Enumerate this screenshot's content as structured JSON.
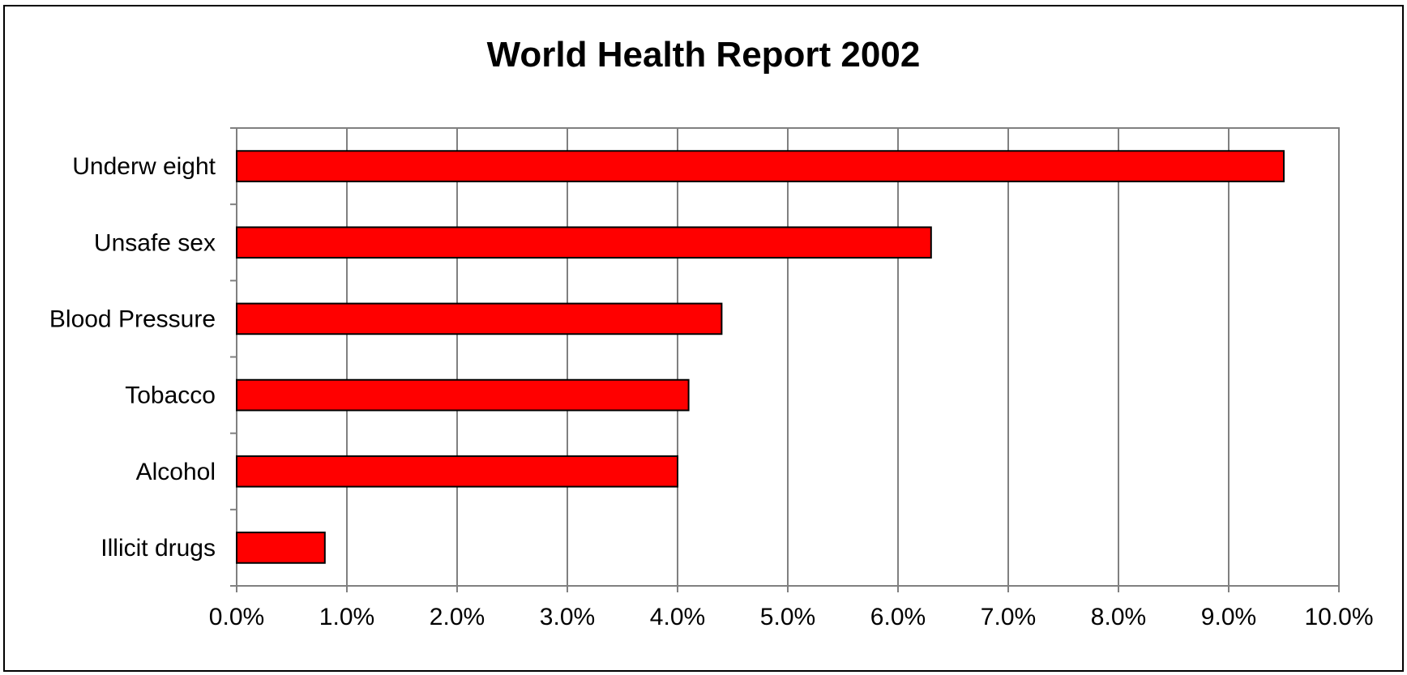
{
  "chart_data": {
    "type": "bar",
    "orientation": "horizontal",
    "title": "World Health Report 2002",
    "xlabel": "",
    "ylabel": "",
    "categories": [
      "Underw eight",
      "Unsafe sex",
      "Blood Pressure",
      "Tobacco",
      "Alcohol",
      "Illicit drugs"
    ],
    "values": [
      0.095,
      0.063,
      0.044,
      0.041,
      0.04,
      0.008
    ],
    "xlim": [
      0,
      0.1
    ],
    "xticks": [
      0.0,
      0.01,
      0.02,
      0.03,
      0.04,
      0.05,
      0.06,
      0.07,
      0.08,
      0.09,
      0.1
    ],
    "xtick_labels": [
      "0.0%",
      "1.0%",
      "2.0%",
      "3.0%",
      "4.0%",
      "5.0%",
      "6.0%",
      "7.0%",
      "8.0%",
      "9.0%",
      "10.0%"
    ],
    "grid": "vertical",
    "legend": "none",
    "colors": {
      "bar_fill": "#ff0000",
      "bar_stroke": "#000000",
      "grid": "#000000",
      "axis": "#808080",
      "background": "#ffffff"
    }
  }
}
